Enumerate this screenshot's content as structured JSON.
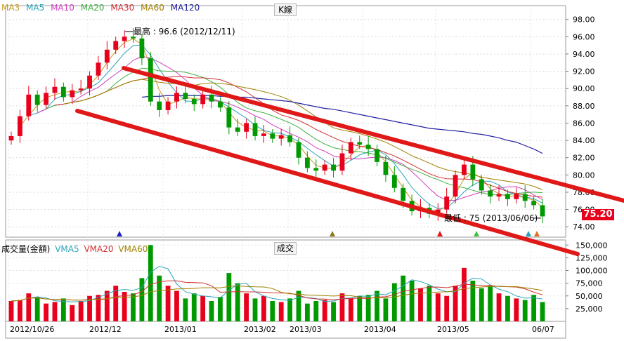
{
  "price_panel": {
    "ma_legend": [
      {
        "label": "MA3",
        "color": "#c89a20"
      },
      {
        "label": "MA5",
        "color": "#2aa3b8"
      },
      {
        "label": "MA10",
        "color": "#d040c0"
      },
      {
        "label": "MA20",
        "color": "#40b040"
      },
      {
        "label": "MA30",
        "color": "#d03030"
      },
      {
        "label": "MA60",
        "color": "#a08000"
      },
      {
        "label": "MA120",
        "color": "#2020a0"
      }
    ],
    "type_label": "K線",
    "current_price": "75.20",
    "high_annotation": "最高 : 96.6 (2012/12/11)",
    "low_annotation": "最低 : 75 (2013/06/06)"
  },
  "volume_panel": {
    "legend": [
      {
        "label": "成交量(金額)",
        "color": "#000000"
      },
      {
        "label": "VMA5",
        "color": "#2aa3b8"
      },
      {
        "label": "VMA20",
        "color": "#d03030"
      },
      {
        "label": "VMA60",
        "color": "#a08000"
      }
    ],
    "type_label": "成交"
  },
  "chart_data": {
    "type": "candlestick",
    "price_axis": {
      "ticks": [
        "98.00",
        "96.00",
        "94.00",
        "92.00",
        "90.00",
        "88.00",
        "86.00",
        "84.00",
        "82.00",
        "80.00",
        "78.00",
        "76.00",
        "74.00"
      ],
      "ylim": [
        72.8,
        99.6
      ]
    },
    "volume_axis": {
      "ticks": [
        "150,000",
        "125,000",
        "100,000",
        "75,000",
        "50,000",
        "25,000"
      ],
      "ylim": [
        0,
        160000
      ]
    },
    "x_labels": [
      "2012/10/26",
      "2012/12",
      "2013/01",
      "2013/02",
      "2013/03",
      "2013/04",
      "2013/05",
      "06/07"
    ],
    "high": {
      "value": 96.6,
      "date": "2012/12/11"
    },
    "low": {
      "value": 75,
      "date": "2013/06/06"
    },
    "last_price": 75.2,
    "close_path": [
      84.5,
      86.8,
      89.3,
      88.1,
      89.5,
      90.2,
      89.0,
      89.8,
      90.0,
      91.5,
      93.0,
      94.5,
      95.5,
      96.0,
      95.8,
      93.5,
      88.5,
      87.5,
      88.5,
      89.5,
      88.8,
      88.2,
      89.3,
      88.5,
      87.8,
      85.5,
      85.0,
      86.0,
      84.5,
      84.8,
      84.2,
      84.6,
      83.8,
      82.0,
      80.8,
      80.5,
      81.2,
      80.5,
      82.5,
      83.8,
      83.5,
      83.0,
      81.5,
      80.0,
      78.5,
      77.0,
      75.8,
      76.2,
      75.5,
      76.0,
      77.5,
      80.0,
      81.2,
      79.5,
      78.2,
      77.5,
      77.8,
      77.2,
      77.8,
      77.0,
      76.5,
      75.2
    ],
    "ma120_path": [
      0,
      0,
      0,
      0,
      0,
      0,
      0,
      0,
      0,
      0,
      0,
      0,
      0,
      0,
      0,
      89.0,
      89.1,
      89.1,
      89.2,
      89.2,
      89.2,
      89.2,
      89.2,
      89.2,
      89.1,
      89.1,
      89.0,
      89.0,
      88.9,
      88.8,
      88.7,
      88.6,
      88.5,
      88.3,
      88.1,
      87.9,
      87.7,
      87.6,
      87.4,
      87.2,
      87.0,
      86.8,
      86.6,
      86.4,
      86.2,
      86.0,
      85.8,
      85.6,
      85.4,
      85.3,
      85.2,
      85.1,
      85.0,
      84.8,
      84.7,
      84.5,
      84.3,
      84.0,
      83.8,
      83.4,
      83.0,
      82.5
    ],
    "volume_path": [
      40,
      42,
      55,
      48,
      35,
      38,
      45,
      32,
      40,
      50,
      52,
      60,
      70,
      58,
      55,
      85,
      150,
      90,
      70,
      60,
      45,
      55,
      50,
      40,
      48,
      95,
      75,
      55,
      45,
      50,
      40,
      38,
      45,
      60,
      35,
      40,
      42,
      38,
      55,
      45,
      50,
      52,
      60,
      45,
      75,
      90,
      80,
      65,
      70,
      55,
      50,
      70,
      105,
      80,
      65,
      70,
      55,
      50,
      45,
      42,
      52,
      38
    ]
  }
}
